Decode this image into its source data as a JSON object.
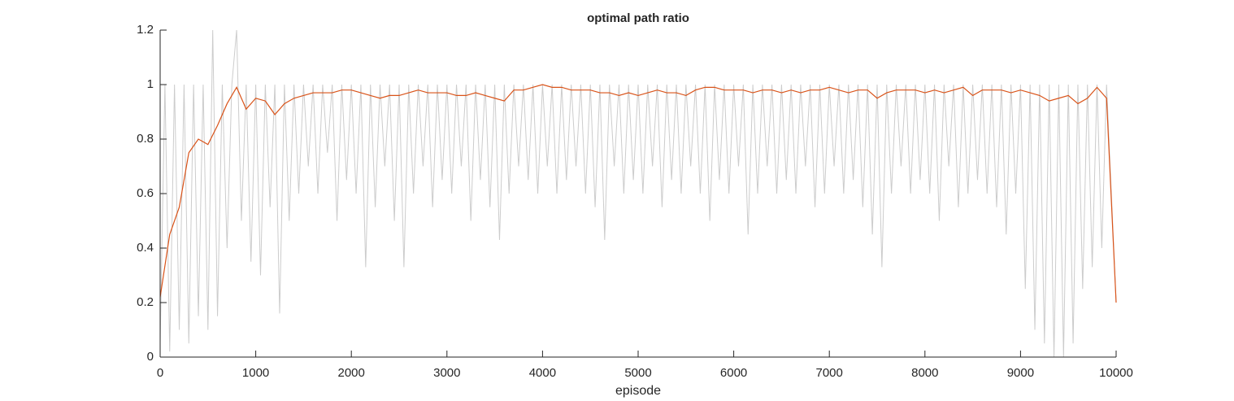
{
  "chart_data": {
    "type": "line",
    "title": "optimal path ratio",
    "xlabel": "episode",
    "xlim": [
      0,
      10000
    ],
    "xticks": [
      0,
      1000,
      2000,
      3000,
      4000,
      5000,
      6000,
      7000,
      8000,
      9000,
      10000
    ],
    "ylim": [
      0,
      1.2
    ],
    "yticks": [
      0,
      0.2,
      0.4,
      0.6,
      0.8,
      1,
      1.2
    ],
    "series": [
      {
        "color": "#cccccc",
        "x": [
          0,
          50,
          100,
          150,
          200,
          250,
          300,
          350,
          400,
          450,
          500,
          550,
          600,
          650,
          700,
          750,
          800,
          850,
          900,
          950,
          1000,
          1050,
          1100,
          1150,
          1200,
          1250,
          1300,
          1350,
          1400,
          1450,
          1500,
          1550,
          1600,
          1650,
          1700,
          1750,
          1800,
          1850,
          1900,
          1950,
          2000,
          2050,
          2100,
          2150,
          2200,
          2250,
          2300,
          2350,
          2400,
          2450,
          2500,
          2550,
          2600,
          2650,
          2700,
          2750,
          2800,
          2850,
          2900,
          2950,
          3000,
          3050,
          3100,
          3150,
          3200,
          3250,
          3300,
          3350,
          3400,
          3450,
          3500,
          3550,
          3600,
          3650,
          3700,
          3750,
          3800,
          3850,
          3900,
          3950,
          4000,
          4050,
          4100,
          4150,
          4200,
          4250,
          4300,
          4350,
          4400,
          4450,
          4500,
          4550,
          4600,
          4650,
          4700,
          4750,
          4800,
          4850,
          4900,
          4950,
          5000,
          5050,
          5100,
          5150,
          5200,
          5250,
          5300,
          5350,
          5400,
          5450,
          5500,
          5550,
          5600,
          5650,
          5700,
          5750,
          5800,
          5850,
          5900,
          5950,
          6000,
          6050,
          6100,
          6150,
          6200,
          6250,
          6300,
          6350,
          6400,
          6450,
          6500,
          6550,
          6600,
          6650,
          6700,
          6750,
          6800,
          6850,
          6900,
          6950,
          7000,
          7050,
          7100,
          7150,
          7200,
          7250,
          7300,
          7350,
          7400,
          7450,
          7500,
          7550,
          7600,
          7650,
          7700,
          7750,
          7800,
          7850,
          7900,
          7950,
          8000,
          8050,
          8100,
          8150,
          8200,
          8250,
          8300,
          8350,
          8400,
          8450,
          8500,
          8550,
          8600,
          8650,
          8700,
          8750,
          8800,
          8850,
          8900,
          8950,
          9000,
          9050,
          9100,
          9150,
          9200,
          9250,
          9300,
          9350,
          9400,
          9450,
          9500,
          9550,
          9600,
          9650,
          9700,
          9750,
          9800,
          9850,
          9900,
          9950,
          10000
        ],
        "values": [
          0.05,
          1,
          0.02,
          1,
          0.1,
          1,
          0.05,
          1,
          0.15,
          1,
          0.1,
          1.2,
          0.15,
          1,
          0.4,
          1,
          1.2,
          0.5,
          1,
          0.35,
          1,
          0.3,
          1,
          0.55,
          1,
          0.16,
          1,
          0.5,
          1,
          0.6,
          1,
          0.7,
          1,
          0.6,
          1,
          0.75,
          1,
          0.5,
          1,
          0.65,
          1,
          0.6,
          1,
          0.33,
          1,
          0.55,
          1,
          0.7,
          1,
          0.5,
          1,
          0.33,
          1,
          0.6,
          1,
          0.7,
          1,
          0.55,
          1,
          0.65,
          1,
          0.6,
          1,
          0.7,
          1,
          0.5,
          1,
          0.65,
          1,
          0.55,
          1,
          0.43,
          1,
          0.6,
          1,
          0.7,
          1,
          0.65,
          1,
          0.6,
          1,
          0.7,
          1,
          0.6,
          1,
          0.65,
          1,
          0.7,
          1,
          0.6,
          1,
          0.55,
          1,
          0.43,
          1,
          0.7,
          1,
          0.6,
          1,
          0.65,
          1,
          0.6,
          1,
          0.7,
          1,
          0.55,
          1,
          0.65,
          1,
          0.6,
          1,
          0.7,
          1,
          0.6,
          1,
          0.5,
          1,
          0.65,
          1,
          0.6,
          1,
          0.7,
          1,
          0.45,
          1,
          0.6,
          1,
          0.7,
          1,
          0.6,
          1,
          0.65,
          1,
          0.6,
          1,
          0.7,
          1,
          0.55,
          1,
          0.6,
          1,
          0.7,
          1,
          0.6,
          1,
          0.65,
          1,
          0.55,
          1,
          0.45,
          1,
          0.33,
          1,
          0.6,
          1,
          0.7,
          1,
          0.6,
          1,
          0.65,
          1,
          0.6,
          1,
          0.5,
          1,
          0.7,
          1,
          0.55,
          1,
          0.6,
          1,
          0.65,
          1,
          0.6,
          1,
          0.55,
          1,
          0.45,
          1,
          0.6,
          1,
          0.25,
          1,
          0.1,
          1,
          0.05,
          1,
          0,
          1,
          0,
          1,
          0.05,
          1,
          0.25,
          1,
          0.33,
          1,
          0.4,
          1,
          0.6,
          0.2
        ]
      },
      {
        "color": "#d95319",
        "x": [
          0,
          100,
          200,
          300,
          400,
          500,
          600,
          700,
          800,
          900,
          1000,
          1100,
          1200,
          1300,
          1400,
          1500,
          1600,
          1700,
          1800,
          1900,
          2000,
          2100,
          2200,
          2300,
          2400,
          2500,
          2600,
          2700,
          2800,
          2900,
          3000,
          3100,
          3200,
          3300,
          3400,
          3500,
          3600,
          3700,
          3800,
          3900,
          4000,
          4100,
          4200,
          4300,
          4400,
          4500,
          4600,
          4700,
          4800,
          4900,
          5000,
          5100,
          5200,
          5300,
          5400,
          5500,
          5600,
          5700,
          5800,
          5900,
          6000,
          6100,
          6200,
          6300,
          6400,
          6500,
          6600,
          6700,
          6800,
          6900,
          7000,
          7100,
          7200,
          7300,
          7400,
          7500,
          7600,
          7700,
          7800,
          7900,
          8000,
          8100,
          8200,
          8300,
          8400,
          8500,
          8600,
          8700,
          8800,
          8900,
          9000,
          9100,
          9200,
          9300,
          9400,
          9500,
          9600,
          9700,
          9800,
          9900,
          10000
        ],
        "values": [
          0.22,
          0.45,
          0.55,
          0.75,
          0.8,
          0.78,
          0.85,
          0.93,
          0.99,
          0.91,
          0.95,
          0.94,
          0.89,
          0.93,
          0.95,
          0.96,
          0.97,
          0.97,
          0.97,
          0.98,
          0.98,
          0.97,
          0.96,
          0.95,
          0.96,
          0.96,
          0.97,
          0.98,
          0.97,
          0.97,
          0.97,
          0.96,
          0.96,
          0.97,
          0.96,
          0.95,
          0.94,
          0.98,
          0.98,
          0.99,
          1.0,
          0.99,
          0.99,
          0.98,
          0.98,
          0.98,
          0.97,
          0.97,
          0.96,
          0.97,
          0.96,
          0.97,
          0.98,
          0.97,
          0.97,
          0.96,
          0.98,
          0.99,
          0.99,
          0.98,
          0.98,
          0.98,
          0.97,
          0.98,
          0.98,
          0.97,
          0.98,
          0.97,
          0.98,
          0.98,
          0.99,
          0.98,
          0.97,
          0.98,
          0.98,
          0.95,
          0.97,
          0.98,
          0.98,
          0.98,
          0.97,
          0.98,
          0.97,
          0.98,
          0.99,
          0.96,
          0.98,
          0.98,
          0.98,
          0.97,
          0.98,
          0.97,
          0.96,
          0.94,
          0.95,
          0.96,
          0.93,
          0.95,
          0.99,
          0.95,
          0.2
        ]
      }
    ]
  }
}
